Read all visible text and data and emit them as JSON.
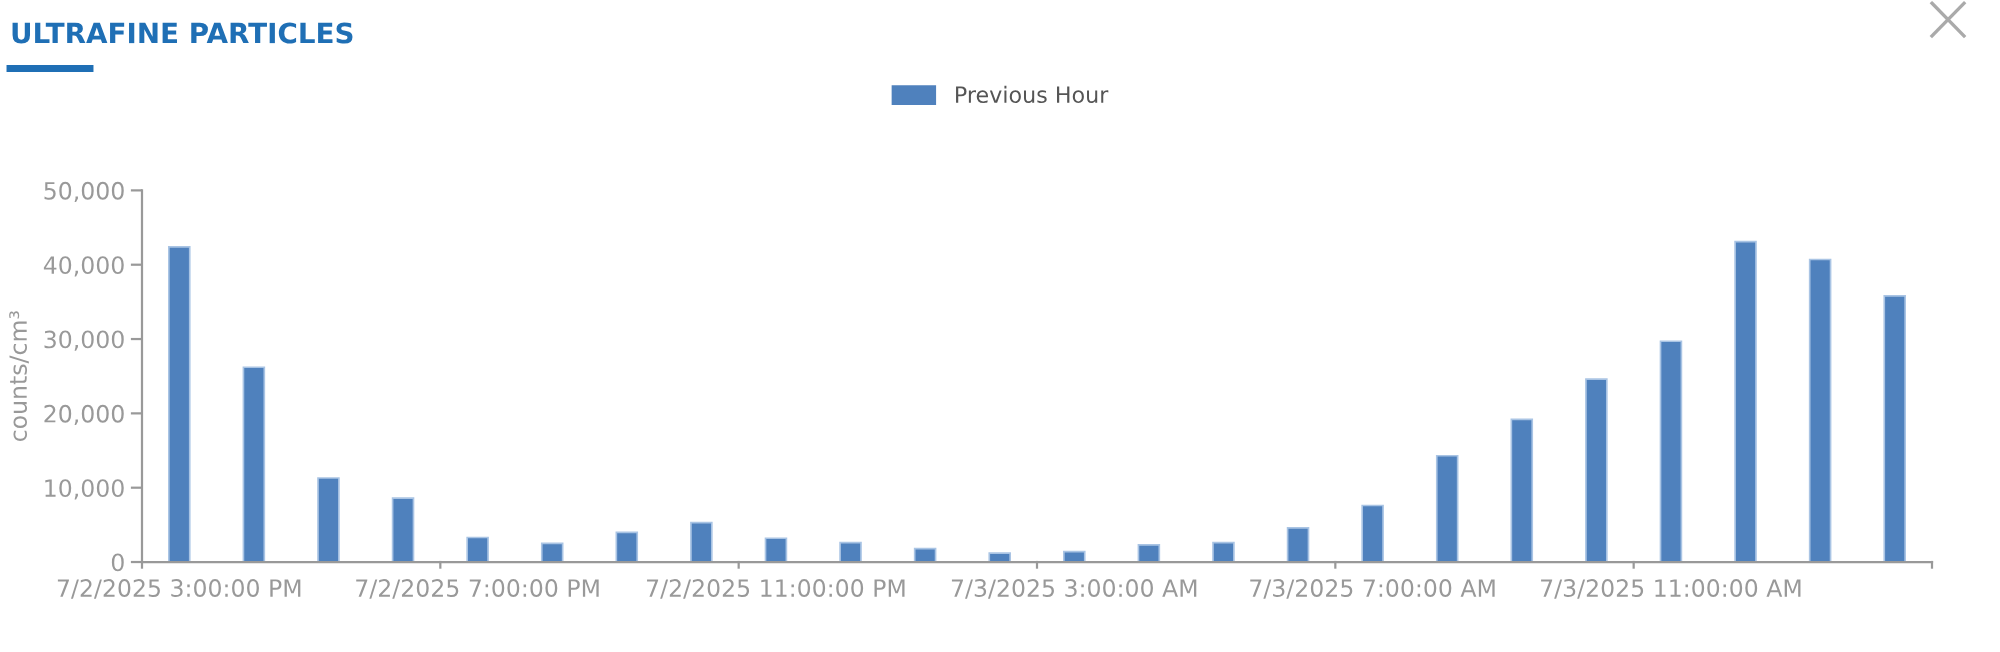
{
  "chart_data": {
    "type": "bar",
    "title": "ULTRAFINE PARTICLES",
    "ylabel": "counts/cm³",
    "categories": [
      "7/2/2025 3:00:00 PM",
      null,
      null,
      null,
      "7/2/2025 7:00:00 PM",
      null,
      null,
      null,
      "7/2/2025 11:00:00 PM",
      null,
      null,
      null,
      "7/3/2025 3:00:00 AM",
      null,
      null,
      null,
      "7/3/2025 7:00:00 AM",
      null,
      null,
      null,
      "7/3/2025 11:00:00 AM",
      null,
      null,
      null
    ],
    "series": [
      {
        "name": "Previous Hour",
        "color": "#4f81bd",
        "values": [
          42400,
          26200,
          11300,
          8600,
          3300,
          2500,
          4000,
          5300,
          3200,
          2600,
          1800,
          1200,
          1400,
          2300,
          2600,
          4600,
          7600,
          14300,
          19200,
          24600,
          29700,
          43100,
          40700,
          35800
        ]
      }
    ],
    "ylim": [
      0,
      50000
    ],
    "yticks": [
      {
        "value": 0,
        "label": "0"
      },
      {
        "value": 10000,
        "label": "10,000"
      },
      {
        "value": 20000,
        "label": "20,000"
      },
      {
        "value": 30000,
        "label": "30,000"
      },
      {
        "value": 40000,
        "label": "40,000"
      },
      {
        "value": 50000,
        "label": "50,000"
      }
    ],
    "grid": false,
    "legend": "top"
  }
}
